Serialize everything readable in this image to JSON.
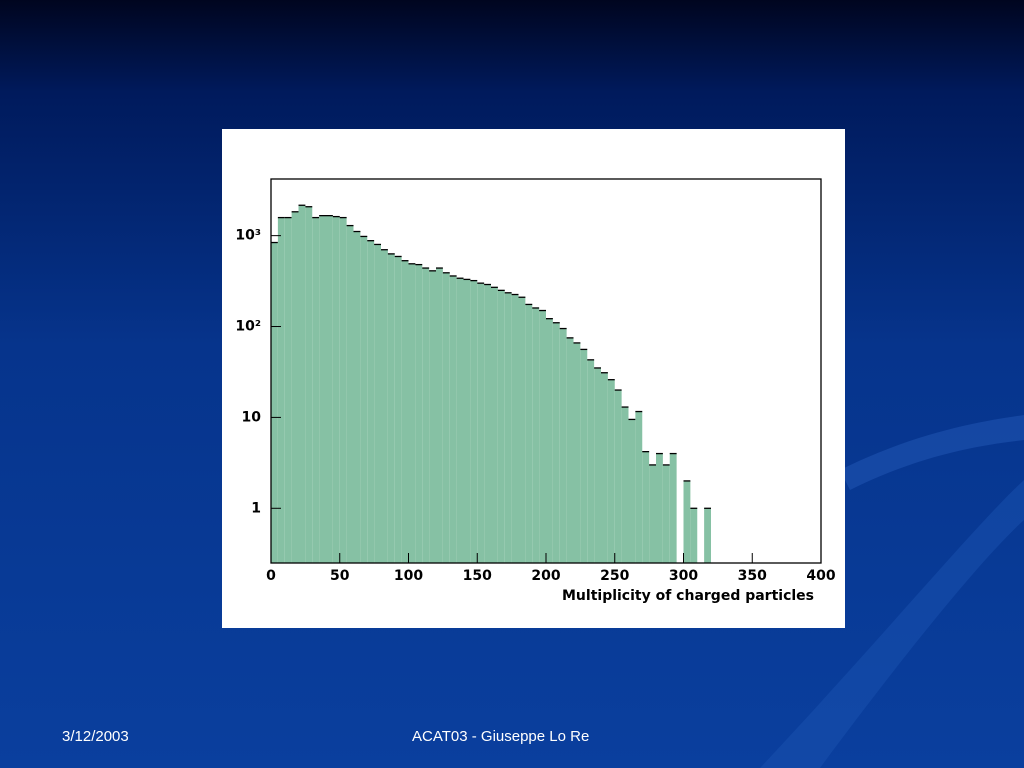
{
  "chart_data": {
    "type": "histogram",
    "xlabel": "Multiplicity of charged particles",
    "bins": [
      0,
      5,
      10,
      15,
      20,
      25,
      30,
      35,
      40,
      45,
      50,
      55,
      60,
      65,
      70,
      75,
      80,
      85,
      90,
      95,
      100,
      105,
      110,
      115,
      120,
      125,
      130,
      135,
      140,
      145,
      150,
      155,
      160,
      165,
      170,
      175,
      180,
      185,
      190,
      195,
      200,
      205,
      210,
      215,
      220,
      225,
      230,
      235,
      240,
      245,
      250,
      255,
      260,
      265,
      270,
      275,
      280,
      285,
      290,
      295,
      300,
      305,
      310,
      315,
      320
    ],
    "values": [
      840,
      1580,
      1580,
      1830,
      2160,
      2080,
      1580,
      1660,
      1660,
      1620,
      1580,
      1290,
      1110,
      980,
      880,
      800,
      700,
      630,
      590,
      530,
      490,
      480,
      440,
      410,
      440,
      390,
      360,
      340,
      330,
      320,
      300,
      290,
      270,
      250,
      235,
      225,
      210,
      175,
      160,
      150,
      122,
      110,
      95,
      75,
      66,
      56,
      43,
      35,
      31,
      26,
      20,
      13,
      9.5,
      11.6,
      4.2,
      3,
      4,
      3,
      4,
      0,
      2,
      1,
      0,
      1
    ],
    "color": "#86c1a4",
    "xlim": [
      0,
      400
    ],
    "xticks": [
      0,
      50,
      100,
      150,
      200,
      250,
      300,
      350,
      400
    ],
    "ylim": [
      0.25,
      4200
    ],
    "log_y": true,
    "yticks": [
      1,
      10,
      {
        "value": 100,
        "label": "10²"
      },
      {
        "value": 1000,
        "label": "10³"
      }
    ]
  },
  "footer": {
    "date": "3/12/2003",
    "text": "ACAT03 - Giuseppe Lo Re"
  }
}
